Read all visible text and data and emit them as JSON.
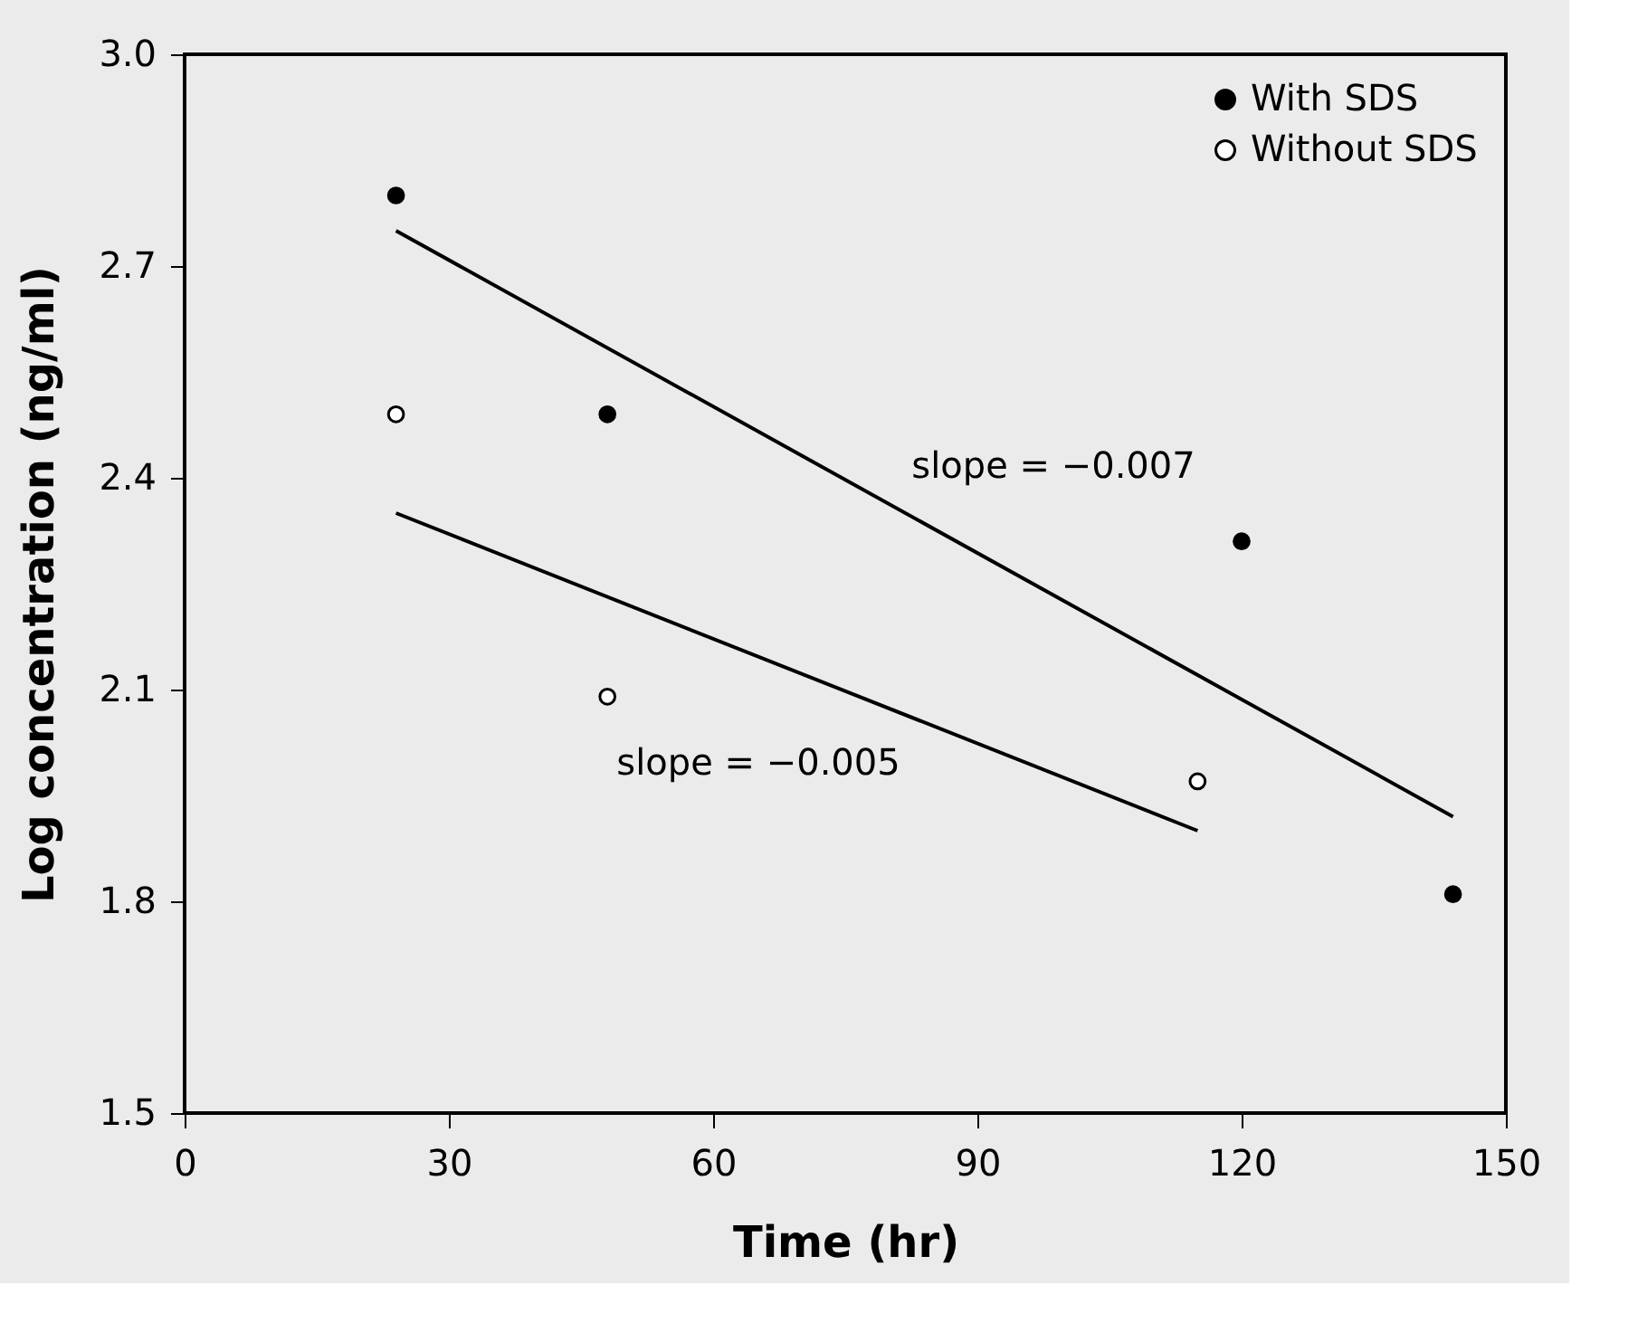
{
  "chart_data": {
    "type": "scatter",
    "xlabel": "Time (hr)",
    "ylabel": "Log concentration (ng/ml)",
    "xlim": [
      0,
      150
    ],
    "xticks": [
      0,
      30,
      60,
      90,
      120,
      150
    ],
    "ylim": [
      1.5,
      3.0
    ],
    "yticks": [
      1.5,
      1.8,
      2.1,
      2.4,
      2.7,
      {
        "value": 3,
        "label": "3.0"
      }
    ],
    "grid": false,
    "legend": "top right",
    "series": [
      {
        "name": "With SDS",
        "color": "#000000",
        "marker": "circle",
        "x": [
          24,
          48,
          120,
          144
        ],
        "values": [
          2.8,
          2.49,
          2.31,
          1.81
        ]
      },
      {
        "name": "Without SDS",
        "color": "#ffffff",
        "marker": "circle",
        "x": [
          24,
          48,
          115
        ],
        "values": [
          2.49,
          2.09,
          1.97
        ]
      },
      {
        "type": "line",
        "color": "#000000",
        "marker": "none",
        "line_style": "solid",
        "x": [
          24,
          144
        ],
        "values": [
          2.75,
          1.92
        ]
      },
      {
        "type": "line",
        "color": "#000000",
        "marker": "none",
        "line_style": "solid",
        "x": [
          24,
          115
        ],
        "values": [
          2.35,
          1.9
        ]
      }
    ],
    "annotations": [
      "slope = −0.007",
      "slope = −0.005"
    ]
  }
}
